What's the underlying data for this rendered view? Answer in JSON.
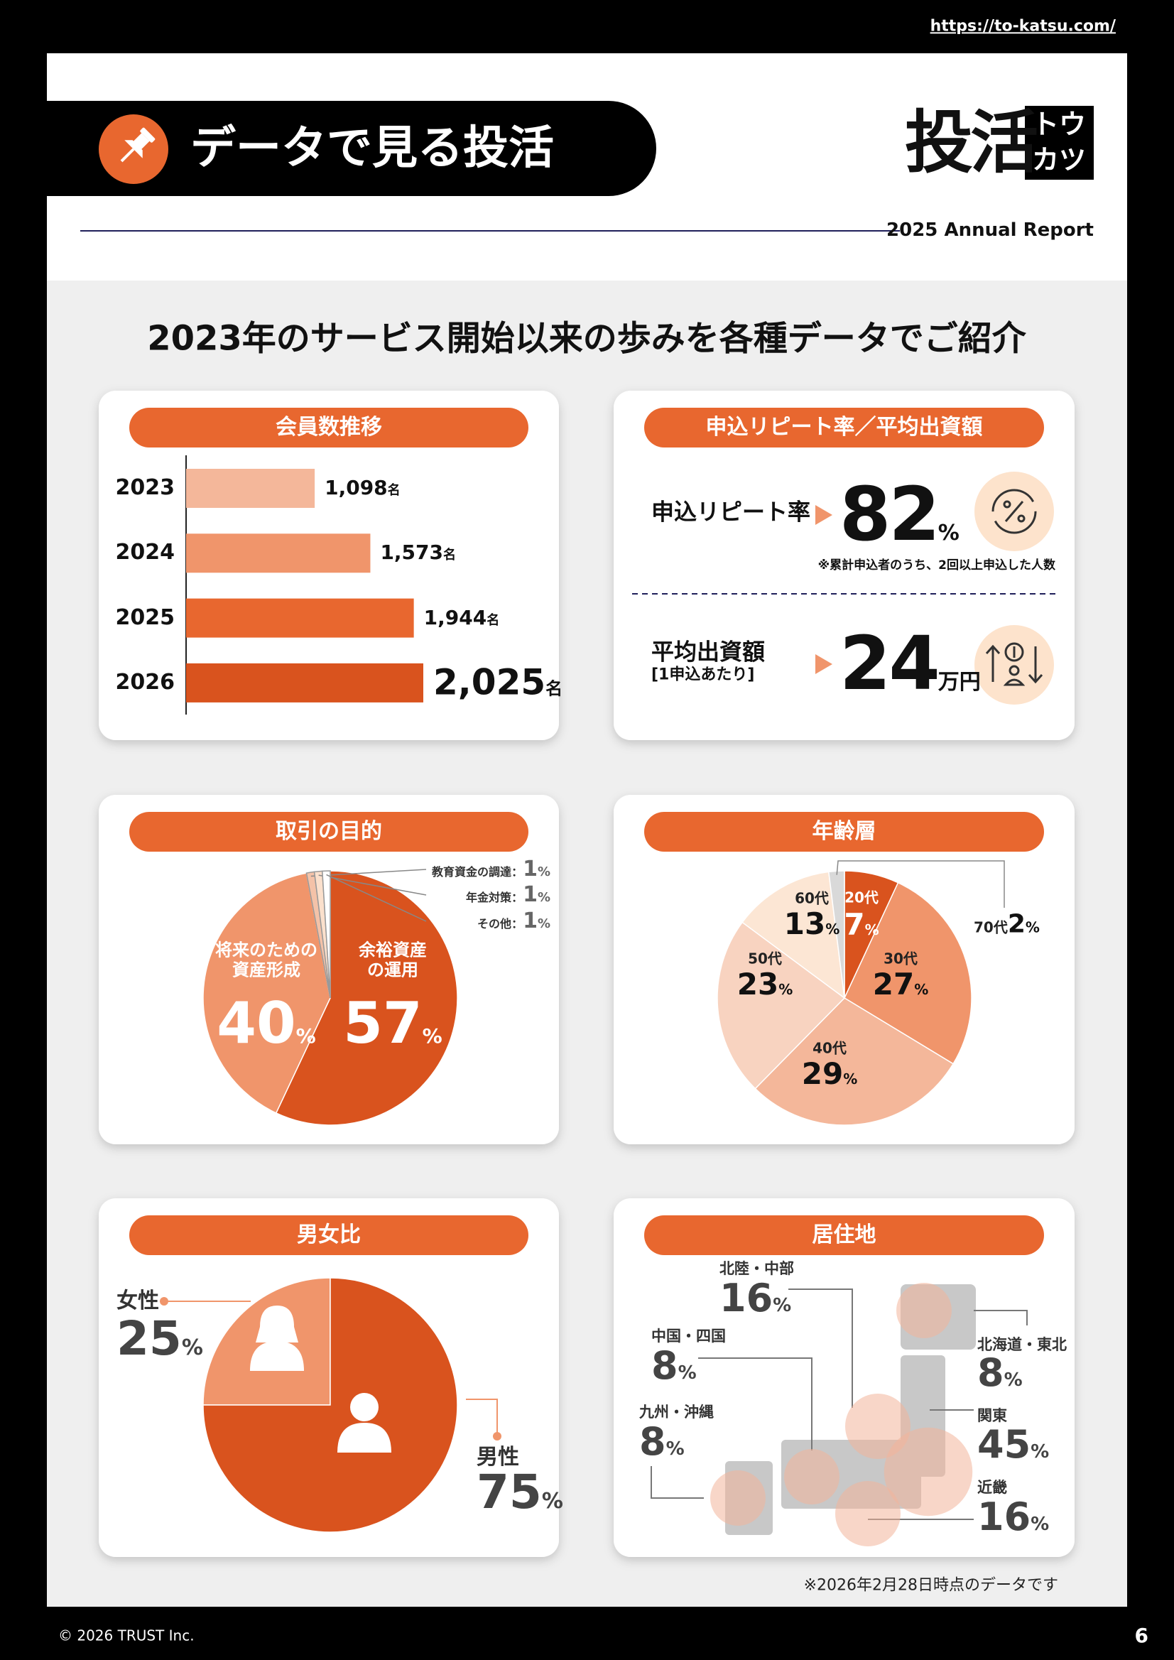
{
  "header": {
    "url": "https://to-katsu.com/",
    "title": "データで見る投活",
    "logo": "投活",
    "logo_kana": [
      "トウ",
      "カツ"
    ],
    "report": "2025 Annual Report"
  },
  "headline": "2023年のサービス開始以来の歩みを各種データでご紹介",
  "chart_data": [
    {
      "type": "bar",
      "orientation": "horizontal",
      "title": "会員数推移",
      "categories": [
        "2023",
        "2024",
        "2025",
        "2026"
      ],
      "values": [
        1098,
        1573,
        1944,
        2025
      ],
      "value_labels": [
        "1,098",
        "1,573",
        "1,944",
        "2,025"
      ],
      "unit": "名",
      "colors": [
        "#f4b79a",
        "#f0956b",
        "#e8672f",
        "#d9531e"
      ]
    },
    {
      "type": "kpi",
      "title": "申込リピート率／平均出資額",
      "items": [
        {
          "label": "申込リピート率",
          "value": 82,
          "unit": "%",
          "note": "※累計申込者のうち、2回以上申込した人数"
        },
        {
          "label": "平均出資額",
          "sublabel": "[1申込あたり]",
          "value": 24,
          "unit": "万円"
        }
      ]
    },
    {
      "type": "pie",
      "title": "取引の目的",
      "categories": [
        "余裕資産\nの運用",
        "将来のための\n資産形成",
        "教育資金の調達",
        "年金対策",
        "その他"
      ],
      "values": [
        57,
        40,
        1,
        1,
        1
      ],
      "unit": "%",
      "label_separator": "：",
      "colors": [
        "#d9531e",
        "#f0956b",
        "#f4c2a8",
        "#fbe0cc",
        "#ffffff"
      ]
    },
    {
      "type": "pie",
      "title": "年齢層",
      "categories": [
        "20代",
        "30代",
        "40代",
        "50代",
        "60代",
        "70代"
      ],
      "values": [
        7,
        27,
        29,
        23,
        13,
        2
      ],
      "unit": "%",
      "colors": [
        "#d9531e",
        "#f0956b",
        "#f4b79a",
        "#f8d3c0",
        "#fce6d4",
        "#d9d9d9"
      ]
    },
    {
      "type": "pie",
      "title": "男女比",
      "categories": [
        "女性",
        "男性"
      ],
      "values": [
        25,
        75
      ],
      "unit": "%",
      "colors": [
        "#f0956b",
        "#d9531e"
      ]
    },
    {
      "type": "map",
      "title": "居住地",
      "categories": [
        "北陸・中部",
        "中国・四国",
        "九州・沖縄",
        "北海道・東北",
        "関東",
        "近畿"
      ],
      "values": [
        16,
        8,
        8,
        8,
        45,
        16
      ],
      "unit": "%",
      "color": "#f3b49a"
    }
  ],
  "note": "※2026年2月28日時点のデータです",
  "footer": {
    "copyright": "© 2026 TRUST Inc.",
    "page": "6"
  }
}
